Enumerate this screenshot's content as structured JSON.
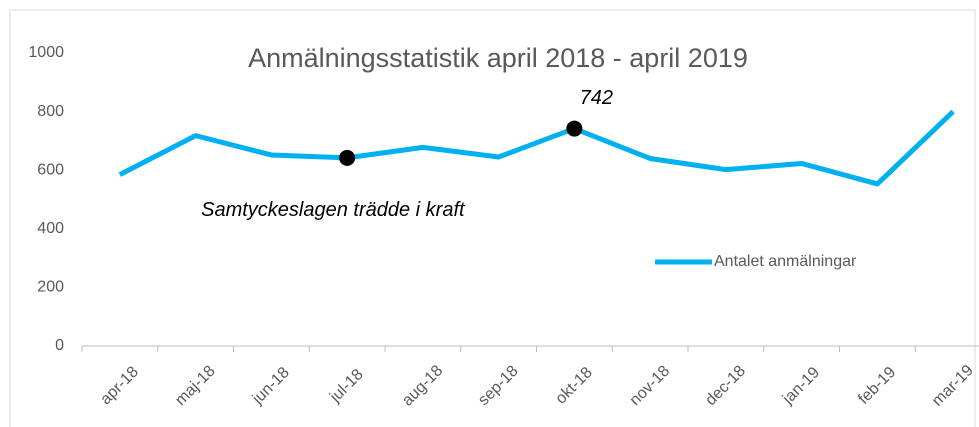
{
  "chart_data": {
    "type": "line",
    "title": "Anmälningsstatistik april 2018 - april 2019",
    "categories": [
      "apr-18",
      "maj-18",
      "jun-18",
      "jul-18",
      "aug-18",
      "sep-18",
      "okt-18",
      "nov-18",
      "dec-18",
      "jan-19",
      "feb-19",
      "mar-19"
    ],
    "series": [
      {
        "name": "Antalet anmälningar",
        "color": "#00b0f0",
        "values": [
          585,
          718,
          652,
          642,
          678,
          645,
          742,
          640,
          602,
          623,
          553,
          800
        ],
        "value_labels": [
          null,
          null,
          null,
          null,
          null,
          null,
          "742",
          null,
          null,
          null,
          null,
          null
        ]
      }
    ],
    "annotations": [
      {
        "text": "Samtyckeslagen trädde i kraft",
        "category": "jul-18"
      }
    ],
    "ylim": [
      0,
      1000
    ],
    "yticks": [
      0,
      200,
      400,
      600,
      800,
      1000
    ],
    "grid": false,
    "legend": "right"
  }
}
